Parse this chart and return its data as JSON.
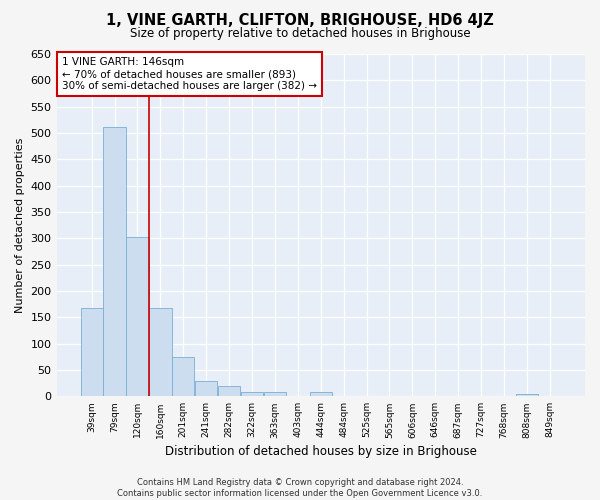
{
  "title": "1, VINE GARTH, CLIFTON, BRIGHOUSE, HD6 4JZ",
  "subtitle": "Size of property relative to detached houses in Brighouse",
  "xlabel": "Distribution of detached houses by size in Brighouse",
  "ylabel": "Number of detached properties",
  "bar_color": "#ccddf0",
  "bar_edge_color": "#7aafd4",
  "background_color": "#e8eef8",
  "annotation_text": "1 VINE GARTH: 146sqm\n← 70% of detached houses are smaller (893)\n30% of semi-detached houses are larger (382) →",
  "vline_x": 2.5,
  "vline_color": "#cc0000",
  "categories": [
    "39sqm",
    "79sqm",
    "120sqm",
    "160sqm",
    "201sqm",
    "241sqm",
    "282sqm",
    "322sqm",
    "363sqm",
    "403sqm",
    "444sqm",
    "484sqm",
    "525sqm",
    "565sqm",
    "606sqm",
    "646sqm",
    "687sqm",
    "727sqm",
    "768sqm",
    "808sqm",
    "849sqm"
  ],
  "values": [
    167,
    512,
    303,
    168,
    75,
    30,
    20,
    8,
    8,
    0,
    8,
    0,
    0,
    0,
    0,
    0,
    0,
    0,
    0,
    5,
    0
  ],
  "ylim": [
    0,
    650
  ],
  "yticks": [
    0,
    50,
    100,
    150,
    200,
    250,
    300,
    350,
    400,
    450,
    500,
    550,
    600,
    650
  ],
  "footer": "Contains HM Land Registry data © Crown copyright and database right 2024.\nContains public sector information licensed under the Open Government Licence v3.0.",
  "grid_color": "#d0d8e8",
  "ann_box_color": "#ffffff",
  "ann_box_edge": "#cc0000",
  "fig_bg": "#f5f5f5"
}
